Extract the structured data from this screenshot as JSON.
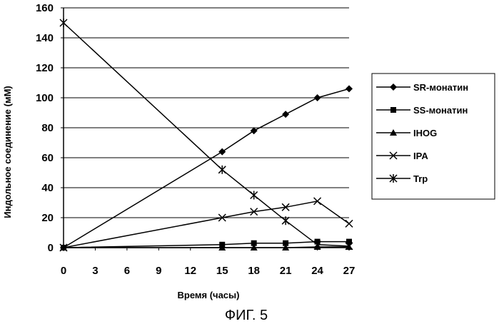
{
  "chart_data": {
    "type": "line",
    "xlabel": "Время (часы)",
    "ylabel": "Индольное соединение (мМ)",
    "caption": "ФИГ. 5",
    "xlim": [
      0,
      27
    ],
    "ylim": [
      0,
      160
    ],
    "x_ticks": [
      0,
      3,
      6,
      9,
      12,
      15,
      18,
      21,
      24,
      27
    ],
    "y_ticks": [
      0,
      20,
      40,
      60,
      80,
      100,
      120,
      140,
      160
    ],
    "grid": "horizontal",
    "legend_position": "right",
    "series": [
      {
        "name": "SR-монатин",
        "marker": "diamond",
        "points": [
          [
            0,
            0
          ],
          [
            15,
            64
          ],
          [
            18,
            78
          ],
          [
            21,
            89
          ],
          [
            24,
            100
          ],
          [
            27,
            106
          ]
        ]
      },
      {
        "name": "SS-монатин",
        "marker": "square",
        "points": [
          [
            0,
            0
          ],
          [
            15,
            2
          ],
          [
            18,
            3
          ],
          [
            21,
            3
          ],
          [
            24,
            4
          ],
          [
            27,
            4
          ]
        ]
      },
      {
        "name": "IHOG",
        "marker": "triangle",
        "points": [
          [
            0,
            0
          ],
          [
            15,
            0
          ],
          [
            18,
            0
          ],
          [
            21,
            0
          ],
          [
            24,
            0.5
          ],
          [
            27,
            0.5
          ]
        ]
      },
      {
        "name": "IPA",
        "marker": "x",
        "points": [
          [
            0,
            0
          ],
          [
            15,
            20
          ],
          [
            18,
            24
          ],
          [
            21,
            27
          ],
          [
            24,
            31
          ],
          [
            27,
            16
          ]
        ]
      },
      {
        "name": "Trp",
        "marker": "asterisk",
        "points": [
          [
            0,
            150
          ],
          [
            15,
            52
          ],
          [
            18,
            35
          ],
          [
            21,
            18
          ],
          [
            24,
            2
          ],
          [
            27,
            1
          ]
        ]
      }
    ]
  }
}
